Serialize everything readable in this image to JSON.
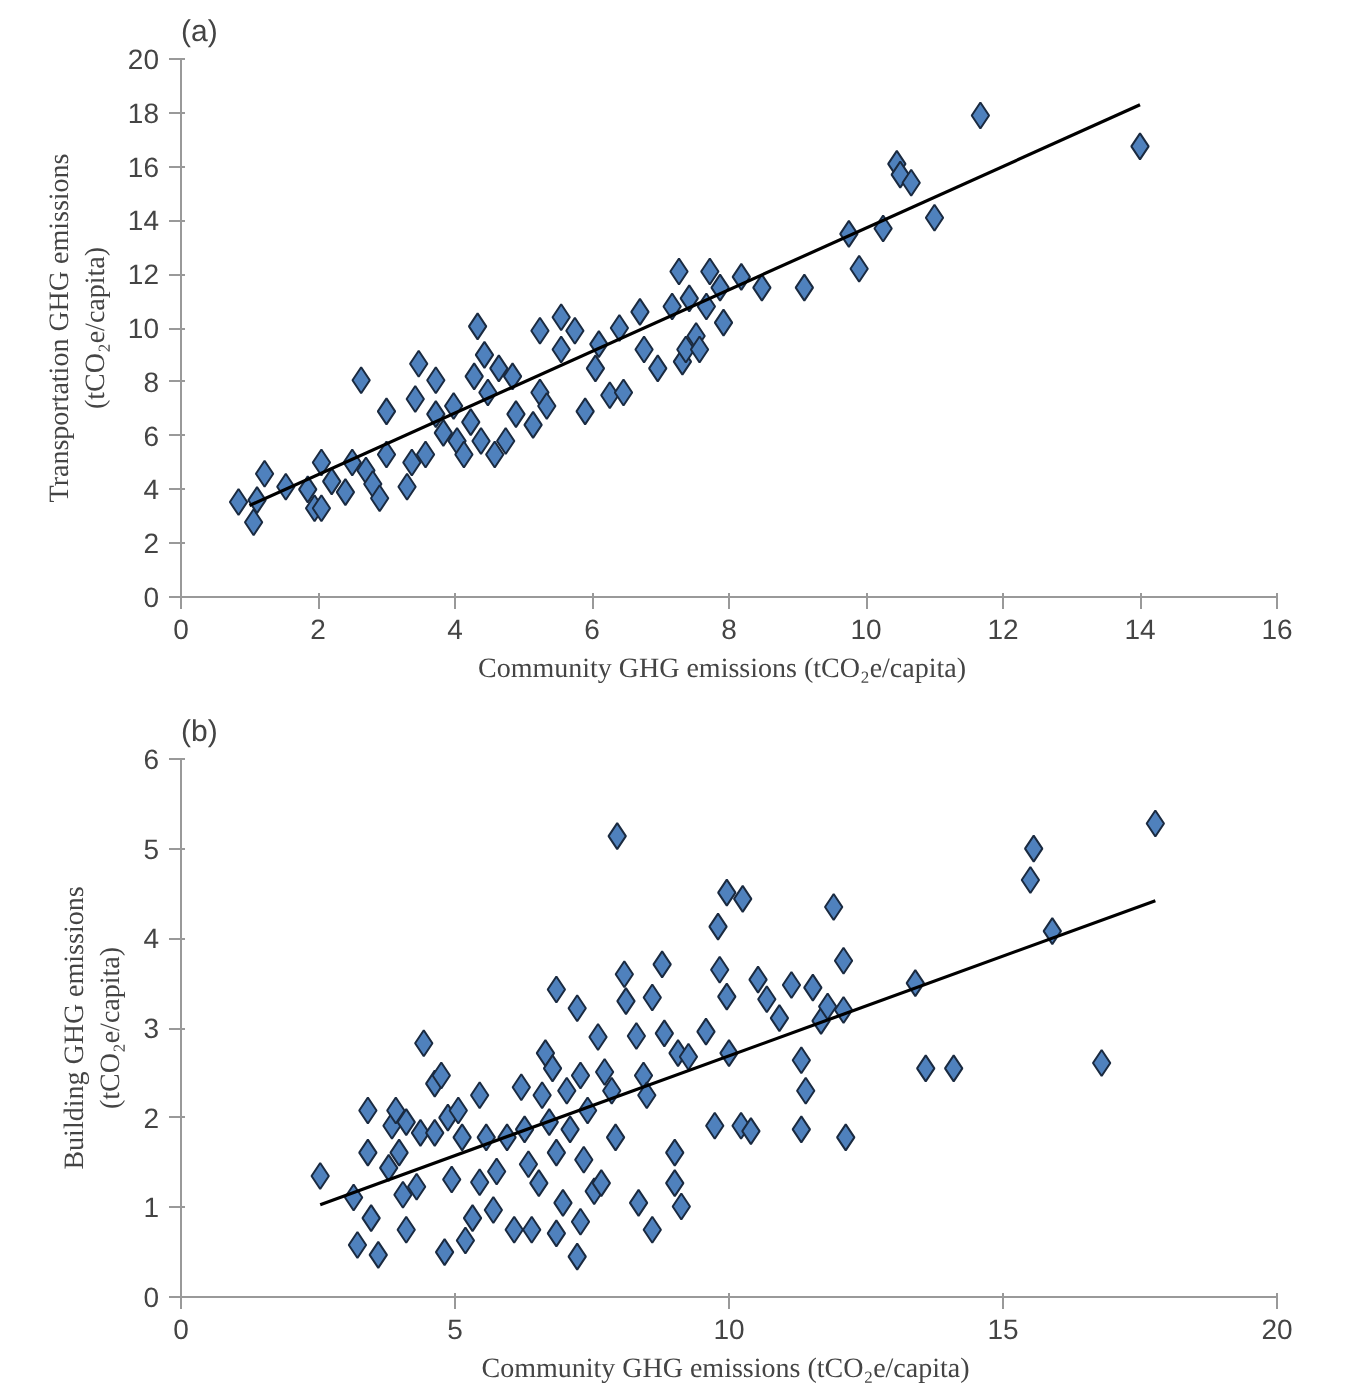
{
  "chart_data": [
    {
      "type": "scatter",
      "title": "(a)",
      "xlabel": "Community  GHG emissions  (tCO₂e/capita)",
      "ylabel": "Transportation GHG emissions\n(tCO₂e/capita)",
      "xlim": [
        0,
        16
      ],
      "xticks": [
        0,
        2,
        4,
        6,
        8,
        10,
        12,
        14,
        16
      ],
      "ylim": [
        0,
        20
      ],
      "yticks": [
        0,
        2,
        4,
        6,
        8,
        10,
        12,
        14,
        16,
        18,
        20
      ],
      "grid": false,
      "series": [
        {
          "marker": "diamond",
          "color": "#4f81bd",
          "x": [
            0.84,
            1.06,
            1.11,
            1.22,
            1.53,
            1.85,
            1.95,
            2.05,
            2.05,
            2.2,
            2.4,
            2.5,
            2.63,
            2.7,
            2.8,
            2.9,
            3.0,
            3.0,
            3.3,
            3.37,
            3.42,
            3.47,
            3.57,
            3.72,
            3.72,
            3.83,
            3.98,
            4.03,
            4.13,
            4.23,
            4.28,
            4.33,
            4.38,
            4.43,
            4.48,
            4.58,
            4.64,
            4.74,
            4.84,
            4.89,
            5.14,
            5.24,
            5.24,
            5.34,
            5.55,
            5.55,
            5.75,
            5.9,
            6.05,
            6.1,
            6.26,
            6.4,
            6.46,
            6.7,
            6.76,
            6.96,
            7.17,
            7.27,
            7.32,
            7.37,
            7.42,
            7.52,
            7.57,
            7.72,
            7.67,
            7.87,
            7.92,
            8.18,
            8.48,
            9.1,
            9.75,
            9.9,
            10.25,
            10.45,
            10.5,
            10.66,
            11.0,
            11.67,
            14.0
          ],
          "values": [
            3.53,
            2.78,
            3.6,
            4.58,
            4.1,
            4.0,
            3.3,
            5.0,
            3.3,
            4.3,
            3.9,
            5.0,
            8.06,
            4.7,
            4.2,
            3.67,
            6.9,
            5.3,
            4.1,
            5.0,
            7.36,
            8.67,
            5.3,
            8.06,
            6.8,
            6.1,
            7.1,
            5.8,
            5.3,
            6.5,
            8.2,
            10.06,
            5.8,
            9.0,
            7.6,
            5.3,
            8.5,
            5.8,
            8.2,
            6.8,
            6.4,
            7.6,
            9.9,
            7.1,
            10.4,
            9.2,
            9.9,
            6.9,
            8.5,
            9.4,
            7.5,
            10.0,
            7.6,
            10.6,
            9.2,
            8.5,
            10.8,
            12.1,
            8.75,
            9.2,
            11.1,
            9.7,
            9.2,
            12.1,
            10.8,
            11.5,
            10.2,
            11.9,
            11.5,
            11.5,
            13.5,
            12.2,
            13.7,
            16.1,
            15.7,
            15.4,
            14.1,
            17.9,
            16.75
          ]
        },
        {
          "type": "line",
          "marker": "none",
          "color": "#000000",
          "x": [
            1.0,
            14.0
          ],
          "values": [
            3.4,
            18.3
          ]
        }
      ]
    },
    {
      "type": "scatter",
      "title": "(b)",
      "xlabel": "Community  GHG emissions (tCO₂e/capita)",
      "ylabel": "Building GHG emissions\n(tCO₂e/capita)",
      "xlim": [
        0,
        20
      ],
      "xticks": [
        0,
        5,
        10,
        15,
        20
      ],
      "ylim": [
        0,
        6
      ],
      "yticks": [
        0,
        1,
        2,
        3,
        4,
        5,
        6
      ],
      "grid": false,
      "series": [
        {
          "marker": "diamond",
          "color": "#4f81bd",
          "x": [
            2.54,
            3.15,
            3.22,
            3.41,
            3.41,
            3.47,
            3.6,
            3.79,
            3.85,
            3.92,
            3.98,
            4.05,
            4.11,
            4.11,
            4.3,
            4.37,
            4.43,
            4.63,
            4.63,
            4.75,
            4.81,
            4.87,
            4.94,
            5.06,
            5.13,
            5.19,
            5.32,
            5.45,
            5.45,
            5.57,
            5.7,
            5.76,
            5.95,
            6.08,
            6.21,
            6.27,
            6.34,
            6.4,
            6.53,
            6.59,
            6.65,
            6.72,
            6.78,
            6.85,
            6.85,
            6.85,
            6.97,
            7.04,
            7.1,
            7.23,
            7.23,
            7.29,
            7.29,
            7.35,
            7.42,
            7.54,
            7.61,
            7.67,
            7.73,
            7.86,
            7.93,
            7.96,
            8.09,
            8.12,
            8.31,
            8.35,
            8.44,
            8.5,
            8.6,
            8.6,
            8.78,
            8.82,
            9.01,
            9.01,
            9.07,
            9.13,
            9.26,
            9.58,
            9.74,
            9.8,
            9.83,
            9.96,
            9.96,
            10.0,
            10.22,
            10.25,
            10.4,
            10.53,
            10.69,
            10.92,
            11.14,
            11.32,
            11.32,
            11.4,
            11.53,
            11.68,
            11.8,
            11.91,
            12.09,
            12.09,
            12.13,
            13.4,
            13.59,
            14.1,
            15.5,
            15.56,
            15.9,
            16.8,
            17.78
          ],
          "values": [
            1.35,
            1.11,
            0.58,
            2.08,
            1.61,
            0.88,
            0.47,
            1.44,
            1.91,
            2.08,
            1.61,
            1.14,
            1.95,
            0.75,
            1.23,
            1.83,
            2.83,
            1.83,
            2.38,
            2.47,
            0.5,
            2.0,
            1.31,
            2.08,
            1.78,
            0.63,
            0.88,
            2.25,
            1.28,
            1.78,
            0.97,
            1.4,
            1.78,
            0.75,
            2.34,
            1.87,
            1.48,
            0.75,
            1.27,
            2.25,
            2.72,
            1.95,
            2.55,
            3.43,
            1.61,
            0.71,
            1.05,
            2.3,
            1.87,
            3.22,
            0.45,
            0.84,
            2.47,
            1.53,
            2.08,
            1.18,
            2.9,
            1.27,
            2.51,
            2.3,
            1.78,
            5.14,
            3.6,
            3.3,
            2.91,
            1.05,
            2.47,
            2.25,
            3.34,
            0.75,
            3.71,
            2.94,
            1.61,
            1.27,
            2.72,
            1.01,
            2.68,
            2.96,
            1.91,
            4.13,
            3.65,
            4.51,
            3.35,
            2.72,
            1.91,
            4.44,
            1.85,
            3.54,
            3.32,
            3.11,
            3.48,
            2.64,
            1.87,
            2.3,
            3.45,
            3.08,
            3.24,
            4.35,
            3.75,
            3.2,
            1.78,
            3.5,
            2.55,
            2.55,
            4.65,
            5.0,
            4.08,
            2.61,
            5.28
          ]
        },
        {
          "type": "line",
          "marker": "none",
          "color": "#000000",
          "x": [
            2.54,
            17.78
          ],
          "values": [
            1.03,
            4.42
          ]
        }
      ]
    }
  ]
}
